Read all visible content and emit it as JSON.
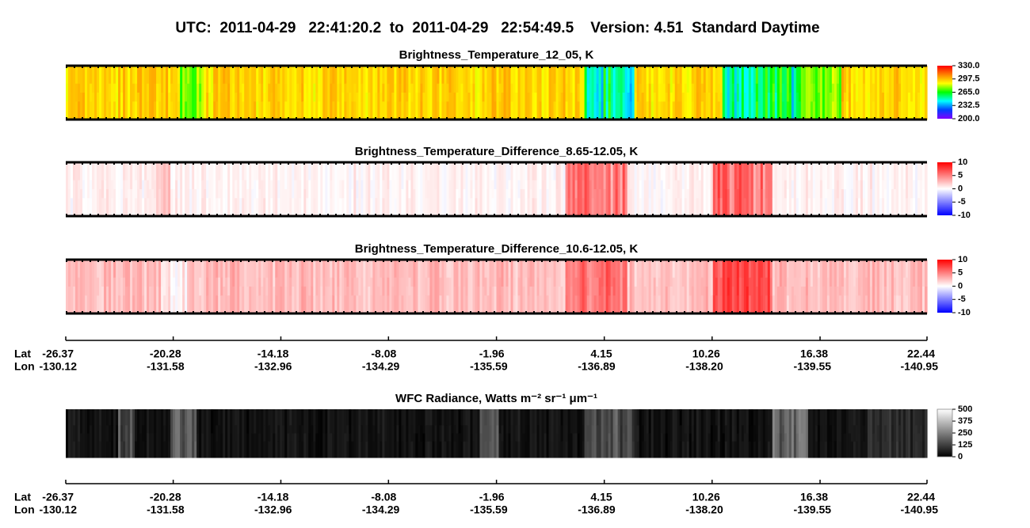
{
  "title": "UTC:  2011-04-29   22:41:20.2  to  2011-04-29   22:54:49.5    Version: 4.51  Standard Daytime",
  "chart_data": [
    {
      "type": "heatmap",
      "title": "Brightness_Temperature_12_05, K",
      "colormap": [
        "#8000ff",
        "#0040ff",
        "#00ffff",
        "#00ff00",
        "#ffff00",
        "#ff8000",
        "#ff0000"
      ],
      "ylim": [
        200,
        330
      ],
      "yticks": [
        {
          "value": 330,
          "label": "330.0"
        },
        297.5,
        {
          "value": 265,
          "label": "265.0"
        },
        232.5,
        {
          "value": 200,
          "label": "200.0"
        }
      ]
    },
    {
      "type": "heatmap",
      "title": "Brightness_Temperature_Difference_8.65-12.05, K",
      "colormap": [
        "#0000ff",
        "#ffffff",
        "#ff0000"
      ],
      "ylim": [
        -10,
        10
      ],
      "yticks": [
        10,
        5,
        0,
        -5,
        -10
      ]
    },
    {
      "type": "heatmap",
      "title": "Brightness_Temperature_Difference_10.6-12.05, K",
      "colormap": [
        "#0000ff",
        "#ffffff",
        "#ff0000"
      ],
      "ylim": [
        -10,
        10
      ],
      "yticks": [
        10,
        5,
        0,
        -5,
        -10
      ]
    },
    {
      "type": "heatmap",
      "title": "WFC Radiance, Watts m⁻² sr⁻¹ μm⁻¹",
      "colormap": [
        "#000000",
        "#ffffff"
      ],
      "ylim": [
        0,
        500
      ],
      "yticks": [
        500,
        375,
        250,
        125,
        0
      ]
    }
  ],
  "x_axes": [
    {
      "lat_label": "Lat",
      "lon_label": "Lon",
      "xlim": [
        -26.37,
        22.44
      ],
      "xticks": [
        -26.37,
        -20.28,
        -14.18,
        -8.08,
        -1.96,
        4.15,
        10.26,
        16.38,
        22.44
      ],
      "lon_ticks": [
        -130.12,
        -131.58,
        -132.96,
        -134.29,
        -135.59,
        -136.89,
        {
          "value": -138.2,
          "label": "-138.20"
        },
        -139.55,
        -140.95
      ]
    },
    {
      "lat_label": "Lat",
      "lon_label": "Lon",
      "xlim": [
        -26.37,
        22.44
      ],
      "xticks": [
        -26.37,
        -20.28,
        -14.18,
        -8.08,
        -1.96,
        4.15,
        10.26,
        16.38,
        22.44
      ],
      "lon_ticks": [
        -130.12,
        -131.58,
        -132.96,
        -134.29,
        -135.59,
        -136.89,
        {
          "value": -138.2,
          "label": "-138.20"
        },
        -139.55,
        -140.95
      ]
    }
  ]
}
